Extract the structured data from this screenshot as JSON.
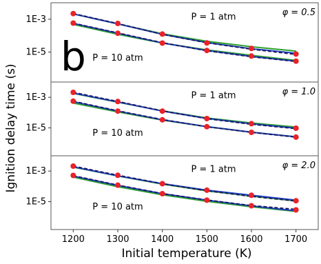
{
  "chart_data": {
    "type": "line",
    "xlabel": "Initial temperature (K)",
    "ylabel": "Ignition delay time (s)",
    "panel_letter": "b",
    "x_ticks": [
      "1200",
      "1300",
      "1400",
      "1500",
      "1600",
      "1700"
    ],
    "xlim": [
      1150,
      1750
    ],
    "log_y": true,
    "grid": false,
    "series_styles": {
      "green": {
        "color": "#2ca02c",
        "dash": ""
      },
      "blue": {
        "color": "#1f3fc4",
        "dash": ""
      },
      "dashed": {
        "color": "#1a1a5e",
        "dash": "5,3"
      },
      "markers": {
        "color": "#e8232a"
      }
    },
    "panels": [
      {
        "phi_label": "φ = 0.5",
        "y_ticks": [
          {
            "label": "1E-3",
            "value": 0.001
          },
          {
            "label": "1E-5",
            "value": 1e-05
          }
        ],
        "ylim": [
          1.5e-07,
          0.01
        ],
        "annotations": [
          {
            "text": "P = 1 atm",
            "x": 1515,
            "y": 0.00135
          },
          {
            "text": "P = 10 atm",
            "x": 1300,
            "y": 4.5e-06
          }
        ],
        "curves": [
          {
            "x": [
              1200,
              1300,
              1400,
              1500,
              1600,
              1700
            ],
            "green": [
              0.0021,
              0.00052,
              0.00013,
              4.5e-05,
              2.1e-05,
              1.15e-05
            ],
            "blue": [
              0.0021,
              0.00052,
              0.00012,
              3.8e-05,
              1.6e-05,
              8.5e-06
            ],
            "dashed": [
              0.0022,
              0.00054,
              0.00012,
              3.7e-05,
              1.5e-05,
              7.2e-06
            ],
            "markers": [
              0.0022,
              0.00055,
              0.000125,
              3.6e-05,
              1.65e-05,
              7.6e-06
            ]
          },
          {
            "x": [
              1200,
              1300,
              1400,
              1500,
              1600,
              1700
            ],
            "green": [
              0.00048,
              0.00012,
              3.5e-05,
              1.35e-05,
              6.3e-06,
              3.1e-06
            ],
            "blue": [
              0.00055,
              0.00014,
              3.6e-05,
              1.25e-05,
              5.4e-06,
              2.8e-06
            ],
            "dashed": [
              0.00057,
              0.000145,
              3.7e-05,
              1.2e-05,
              5.2e-06,
              2.7e-06
            ],
            "markers": [
              0.00058,
              0.00014,
              3.5e-05,
              1.25e-05,
              5.7e-06,
              2.8e-06
            ]
          }
        ]
      },
      {
        "phi_label": "φ = 1.0",
        "y_ticks": [
          {
            "label": "1E-3",
            "value": 0.001
          },
          {
            "label": "1E-5",
            "value": 1e-05
          }
        ],
        "ylim": [
          1.5e-07,
          0.01
        ],
        "annotations": [
          {
            "text": "P = 1 atm",
            "x": 1515,
            "y": 0.00135
          },
          {
            "text": "P = 10 atm",
            "x": 1300,
            "y": 4.5e-06
          }
        ],
        "curves": [
          {
            "x": [
              1200,
              1300,
              1400,
              1500,
              1600,
              1700
            ],
            "green": [
              0.0018,
              0.00048,
              0.00013,
              4.5e-05,
              2.1e-05,
              1.15e-05
            ],
            "blue": [
              0.0019,
              0.0005,
              0.000125,
              4.2e-05,
              1.85e-05,
              9.5e-06
            ],
            "dashed": [
              0.0021,
              0.00053,
              0.00013,
              4e-05,
              1.75e-05,
              9e-06
            ],
            "markers": [
              0.0021,
              0.00053,
              0.000125,
              4.1e-05,
              1.9e-05,
              9.5e-06
            ]
          },
          {
            "x": [
              1200,
              1300,
              1400,
              1500,
              1600,
              1700
            ],
            "green": [
              0.00042,
              0.00011,
              3.2e-05,
              1.2e-05,
              5.2e-06,
              2.6e-06
            ],
            "blue": [
              0.00052,
              0.000125,
              3.4e-05,
              1.2e-05,
              5.2e-06,
              2.6e-06
            ],
            "dashed": [
              0.00055,
              0.00013,
              3.5e-05,
              1.18e-05,
              5.1e-06,
              2.5e-06
            ],
            "markers": [
              0.00056,
              0.000125,
              3.4e-05,
              1.2e-05,
              5.1e-06,
              2.5e-06
            ]
          }
        ]
      },
      {
        "phi_label": "φ = 2.0",
        "y_ticks": [
          {
            "label": "1E-3",
            "value": 0.001
          },
          {
            "label": "1E-5",
            "value": 1e-05
          }
        ],
        "ylim": [
          1.5e-07,
          0.01
        ],
        "annotations": [
          {
            "text": "P = 1 atm",
            "x": 1515,
            "y": 0.00135
          },
          {
            "text": "P = 10 atm",
            "x": 1300,
            "y": 4.5e-06
          }
        ],
        "curves": [
          {
            "x": [
              1200,
              1300,
              1400,
              1500,
              1600,
              1700
            ],
            "green": [
              0.0018,
              0.00048,
              0.00014,
              5e-05,
              2.3e-05,
              1.1e-05
            ],
            "blue": [
              0.0019,
              0.00049,
              0.00015,
              5.6e-05,
              2.6e-05,
              1.25e-05
            ],
            "dashed": [
              0.0021,
              0.00053,
              0.00015,
              5.2e-05,
              2.2e-05,
              1.1e-05
            ],
            "markers": [
              0.0021,
              0.00053,
              0.00015,
              5.6e-05,
              2.6e-05,
              1.15e-05
            ]
          },
          {
            "x": [
              1200,
              1300,
              1400,
              1500,
              1600,
              1700
            ],
            "green": [
              0.0004,
              9.5e-05,
              2.8e-05,
              1.05e-05,
              4.6e-06,
              2.3e-06
            ],
            "blue": [
              0.00047,
              0.000115,
              3.3e-05,
              1.25e-05,
              5.2e-06,
              2.5e-06
            ],
            "dashed": [
              0.0005,
              0.00012,
              3.4e-05,
              1.28e-05,
              5.5e-06,
              3.1e-06
            ],
            "markers": [
              0.00052,
              0.00012,
              3.3e-05,
              1.25e-05,
              5.4e-06,
              2.9e-06
            ]
          }
        ]
      }
    ]
  }
}
